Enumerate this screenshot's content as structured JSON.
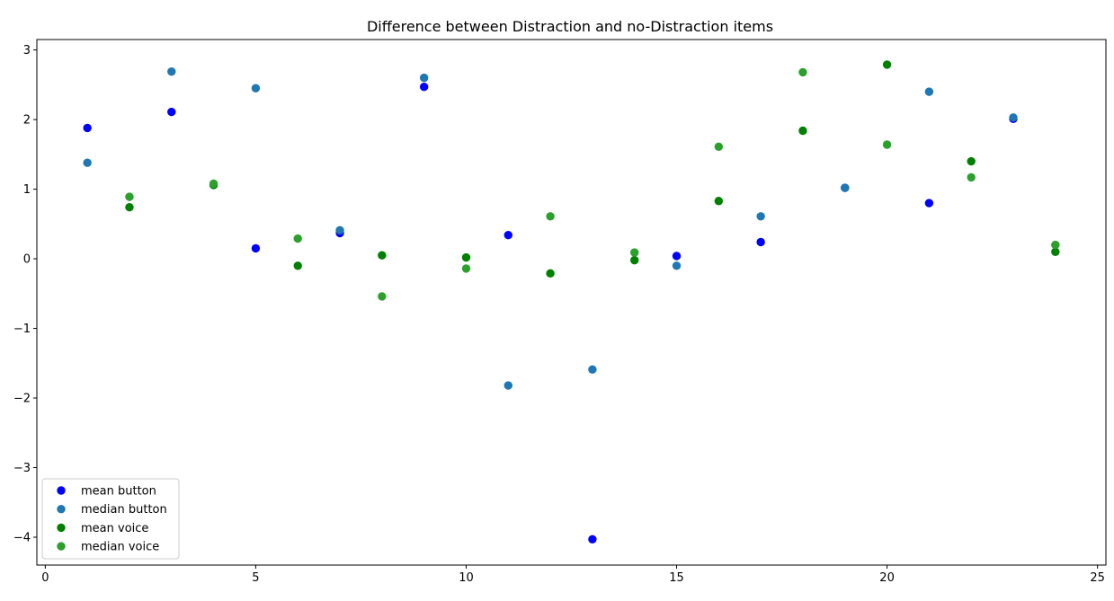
{
  "chart_data": {
    "type": "scatter",
    "title": "Difference between Distraction and no-Distraction items",
    "xlabel": "",
    "ylabel": "",
    "xlim": [
      -0.2,
      25.2
    ],
    "ylim": [
      -4.4,
      3.15
    ],
    "x_ticks": [
      0,
      5,
      10,
      15,
      20,
      25
    ],
    "y_ticks": [
      -4,
      -3,
      -2,
      -1,
      0,
      1,
      2,
      3
    ],
    "grid": false,
    "legend_position": "lower-left",
    "series": [
      {
        "name": "mean button",
        "color": "#0000ff",
        "points": [
          [
            1,
            1.88
          ],
          [
            3,
            2.11
          ],
          [
            5,
            0.15
          ],
          [
            7,
            0.37
          ],
          [
            9,
            2.47
          ],
          [
            11,
            0.34
          ],
          [
            13,
            -4.03
          ],
          [
            15,
            0.04
          ],
          [
            17,
            0.24
          ],
          [
            19,
            1.02
          ],
          [
            21,
            0.8
          ],
          [
            23,
            2.01
          ]
        ]
      },
      {
        "name": "median button",
        "color": "#1f77b4",
        "points": [
          [
            1,
            1.38
          ],
          [
            3,
            2.69
          ],
          [
            5,
            2.45
          ],
          [
            7,
            0.41
          ],
          [
            9,
            2.6
          ],
          [
            11,
            -1.82
          ],
          [
            13,
            -1.59
          ],
          [
            15,
            -0.1
          ],
          [
            17,
            0.61
          ],
          [
            19,
            1.02
          ],
          [
            21,
            2.4
          ],
          [
            23,
            2.03
          ]
        ]
      },
      {
        "name": "mean voice",
        "color": "#008000",
        "points": [
          [
            2,
            0.74
          ],
          [
            4,
            1.06
          ],
          [
            6,
            -0.1
          ],
          [
            8,
            0.05
          ],
          [
            10,
            0.02
          ],
          [
            12,
            -0.21
          ],
          [
            14,
            -0.02
          ],
          [
            16,
            0.83
          ],
          [
            18,
            1.84
          ],
          [
            20,
            2.79
          ],
          [
            22,
            1.4
          ],
          [
            24,
            0.1
          ]
        ]
      },
      {
        "name": "median voice",
        "color": "#2ca02c",
        "points": [
          [
            2,
            0.89
          ],
          [
            4,
            1.08
          ],
          [
            6,
            0.29
          ],
          [
            8,
            -0.54
          ],
          [
            10,
            -0.14
          ],
          [
            12,
            0.61
          ],
          [
            14,
            0.09
          ],
          [
            16,
            1.61
          ],
          [
            18,
            2.68
          ],
          [
            20,
            1.64
          ],
          [
            22,
            1.17
          ],
          [
            24,
            0.2
          ]
        ]
      }
    ]
  }
}
